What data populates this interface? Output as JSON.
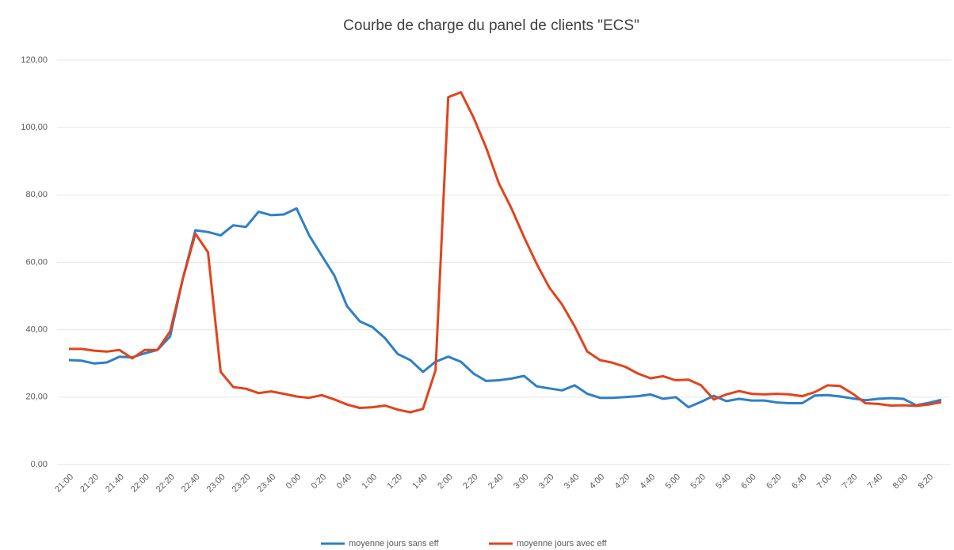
{
  "chart_data": {
    "type": "line",
    "title": "Courbe de charge du panel de clients \"ECS\"",
    "categories": [
      "21:00",
      null,
      "21:20",
      null,
      "21:40",
      null,
      "22:00",
      null,
      "22:20",
      null,
      "22:40",
      null,
      "23:00",
      null,
      "23:20",
      null,
      "23:40",
      null,
      "0:00",
      null,
      "0:20",
      null,
      "0:40",
      null,
      "1:00",
      null,
      "1:20",
      null,
      "1:40",
      null,
      "2:00",
      null,
      "2:20",
      null,
      "2:40",
      null,
      "3:00",
      null,
      "3:20",
      null,
      "3:40",
      null,
      "4:00",
      null,
      "4:20",
      null,
      "4:40",
      null,
      "5:00",
      null,
      "5:20",
      null,
      "5:40",
      null,
      "6:00",
      null,
      "6:20",
      null,
      "6:40",
      null,
      "7:00",
      null,
      "7:20",
      null,
      "7:40",
      null,
      "8:00",
      null,
      "8:20",
      null
    ],
    "series": [
      {
        "name": "moyenne jours sans eff",
        "color": "#2e7fc6",
        "values": [
          31,
          30.8,
          30,
          30.3,
          32,
          31.8,
          33,
          34,
          38,
          55,
          69.5,
          69,
          68,
          71,
          70.5,
          75,
          74,
          74.2,
          76,
          68,
          62,
          56,
          47,
          42.5,
          40.8,
          37.5,
          32.8,
          31,
          27.5,
          30.5,
          32,
          30.5,
          27,
          24.8,
          25,
          25.5,
          26.3,
          23.2,
          22.6,
          22,
          23.5,
          21,
          19.8,
          19.8,
          20,
          20.3,
          20.8,
          19.5,
          20,
          17,
          18.6,
          20.4,
          18.8,
          19.5,
          19,
          19,
          18.4,
          18.2,
          18.2,
          20.5,
          20.6,
          20.2,
          19.6,
          19.1,
          19.5,
          19.7,
          19.5,
          17.6,
          18.3,
          19.2
        ]
      },
      {
        "name": "moyenne jours avec eff",
        "color": "#e2431c",
        "values": [
          34.3,
          34.3,
          33.8,
          33.5,
          34,
          31.5,
          34,
          34,
          39.5,
          55,
          68.5,
          63,
          27.5,
          23,
          22.5,
          21.2,
          21.7,
          21,
          20.2,
          19.8,
          20.6,
          19.3,
          17.8,
          16.8,
          17,
          17.5,
          16.3,
          15.5,
          16.5,
          28,
          109,
          110.5,
          103,
          94,
          83.5,
          76,
          67.5,
          59.5,
          52.5,
          47.5,
          41,
          33.5,
          31,
          30.2,
          29,
          27,
          25.6,
          26.2,
          25,
          25.2,
          23.5,
          19.3,
          20.8,
          21.8,
          21,
          20.8,
          21,
          20.8,
          20.3,
          21.5,
          23.5,
          23.3,
          21,
          18.2,
          18,
          17.5,
          17.6,
          17.4,
          17.8,
          18.5
        ]
      }
    ],
    "ylim": [
      0,
      120
    ],
    "yticks": [
      {
        "value": 0,
        "label": "0,00"
      },
      {
        "value": 20,
        "label": "20,00"
      },
      {
        "value": 40,
        "label": "40,00"
      },
      {
        "value": 60,
        "label": "60,00"
      },
      {
        "value": 80,
        "label": "80,00"
      },
      {
        "value": 100,
        "label": "100,00"
      },
      {
        "value": 120,
        "label": "120,00"
      }
    ],
    "grid": true,
    "legend": "bottom"
  }
}
